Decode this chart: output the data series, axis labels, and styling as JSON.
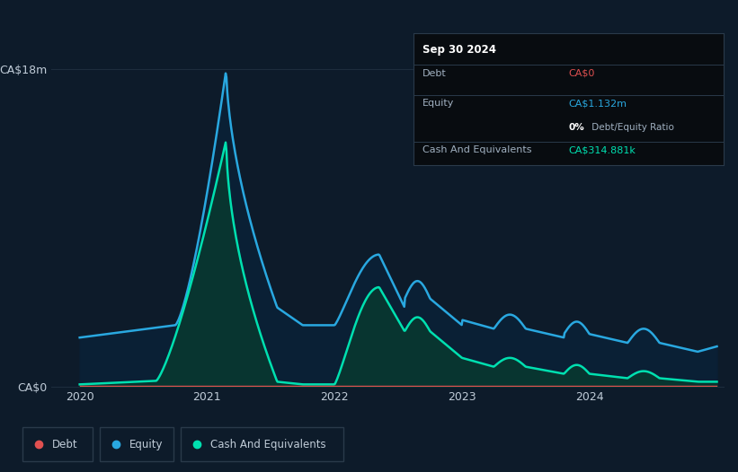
{
  "bg_color": "#0d1b2a",
  "plot_bg_color": "#0d1b2a",
  "grid_color": "#1e2d3d",
  "equity_color": "#29a8e0",
  "equity_fill_color": "#0a2035",
  "cash_color": "#00e0b0",
  "cash_fill_color": "#083530",
  "debt_color": "#e05050",
  "ylabel_top": "CA$18m",
  "ylabel_bottom": "CA$0",
  "x_ticks": [
    2020,
    2021,
    2022,
    2023,
    2024
  ],
  "info_box": {
    "date": "Sep 30 2024",
    "debt_label": "Debt",
    "debt_value": "CA$0",
    "debt_value_color": "#e05050",
    "equity_label": "Equity",
    "equity_value": "CA$1.132m",
    "equity_value_color": "#29a8e0",
    "ratio_bold": "0%",
    "ratio_rest": " Debt/Equity Ratio",
    "cash_label": "Cash And Equivalents",
    "cash_value": "CA$314.881k",
    "cash_value_color": "#00e0b0",
    "bg_color": "#080c10",
    "border_color": "#2a3a4a",
    "text_color": "#a0b0c0"
  },
  "legend_items": [
    {
      "label": "Debt",
      "color": "#e05050"
    },
    {
      "label": "Equity",
      "color": "#29a8e0"
    },
    {
      "label": "Cash And Equivalents",
      "color": "#00e0b0"
    }
  ]
}
